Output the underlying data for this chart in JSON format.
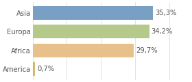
{
  "categories": [
    "America",
    "Africa",
    "Europa",
    "Asia"
  ],
  "values": [
    0.7,
    29.7,
    34.2,
    35.3
  ],
  "labels": [
    "0,7%",
    "29,7%",
    "34,2%",
    "35,3%"
  ],
  "bar_colors": [
    "#d4b96a",
    "#e8c08a",
    "#b5c98a",
    "#7a9fc4"
  ],
  "background_color": "#ffffff",
  "xlim": [
    0,
    46
  ],
  "bar_height": 0.72,
  "label_fontsize": 7.2,
  "tick_fontsize": 7.2,
  "label_color": "#555555",
  "tick_color": "#555555",
  "grid_color": "#dddddd"
}
